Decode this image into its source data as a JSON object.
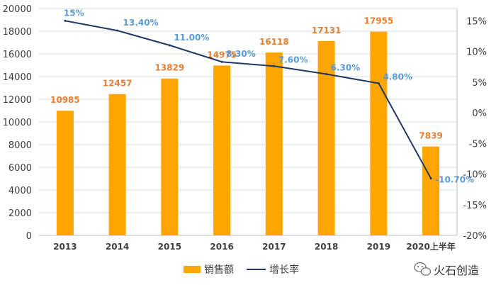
{
  "chart_data": {
    "type": "bar",
    "categories": [
      "2013",
      "2014",
      "2015",
      "2016",
      "2017",
      "2018",
      "2019",
      "2020上半年"
    ],
    "series": [
      {
        "name": "销售额",
        "type": "bar",
        "axis": "left",
        "values": [
          10985,
          12457,
          13829,
          14975,
          16118,
          17131,
          17955,
          7839
        ],
        "labels": [
          "10985",
          "12457",
          "13829",
          "14975",
          "16118",
          "17131",
          "17955",
          "7839"
        ]
      },
      {
        "name": "增长率",
        "type": "line",
        "axis": "right",
        "values": [
          15,
          13.4,
          11.0,
          8.3,
          7.6,
          6.3,
          4.8,
          -10.7
        ],
        "labels": [
          "15%",
          "13.40%",
          "11.00%",
          "8.30%",
          "7.60%",
          "6.30%",
          "4.80%",
          "-10.70%"
        ]
      }
    ],
    "y_left": {
      "lim": [
        0,
        20000
      ],
      "ticks": [
        "0",
        "2000",
        "4000",
        "6000",
        "8000",
        "10000",
        "12000",
        "14000",
        "16000",
        "18000",
        "20000"
      ]
    },
    "y_right": {
      "lim": [
        -20,
        17
      ],
      "tick_values": [
        15,
        10,
        5,
        0,
        -5,
        -10,
        -15,
        -20
      ],
      "ticks": [
        "15%",
        "10%",
        "5%",
        "0%",
        "-5%",
        "-10%",
        "-15%",
        "-20%"
      ]
    },
    "grid": true,
    "legend_position": "bottom-center",
    "colors": {
      "bar": "#FFA500",
      "bar_label": "#E57F32",
      "line": "#1F3864",
      "line_label": "#5B9BD5",
      "grid": "#D9D9D9",
      "axis_text": "#404040"
    }
  },
  "watermark": {
    "text": "火石创造",
    "icon": "wechat-icon"
  }
}
